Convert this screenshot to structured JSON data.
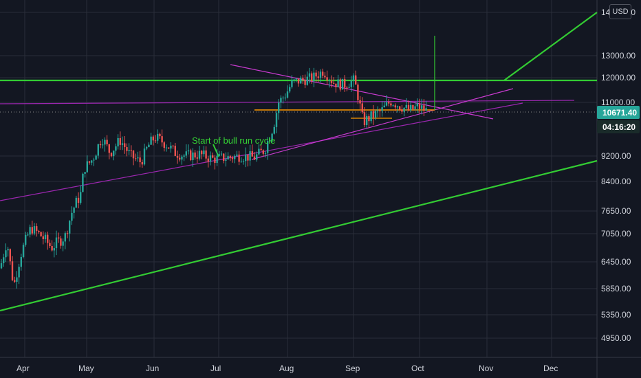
{
  "chart_data": {
    "type": "candlestick",
    "title": "",
    "currency_label": "USD",
    "y_ticks": [
      "14000.00",
      "13000.00",
      "12000.00",
      "11000.00",
      "9200.00",
      "8400.00",
      "7650.00",
      "7050.00",
      "6450.00",
      "5850.00",
      "5350.00",
      "4950.00"
    ],
    "x_ticks": [
      "Apr",
      "May",
      "Jun",
      "Jul",
      "Aug",
      "Sep",
      "Oct",
      "Nov",
      "Dec"
    ],
    "last_price": "10671.40",
    "countdown": "04:16:20",
    "annotation": "Start of bull run cycle",
    "ohlc_approx": [
      {
        "month": "Apr",
        "low": 5600,
        "high": 7400
      },
      {
        "month": "May",
        "low": 8200,
        "high": 9900
      },
      {
        "month": "Jun",
        "low": 8600,
        "high": 10200
      },
      {
        "month": "Jul",
        "low": 8900,
        "high": 9800
      },
      {
        "month": "Aug",
        "low": 10800,
        "high": 12450
      },
      {
        "month": "Sep",
        "low": 9900,
        "high": 11200
      },
      {
        "month": "Oct",
        "low": 10500,
        "high": 10900
      }
    ],
    "colors": {
      "up": "#26a69a",
      "down": "#ef5350",
      "bg": "#131722",
      "grid": "#2a2e39",
      "green_line": "#33cc33",
      "purple_line": "#9c27b0",
      "magenta_line": "#c93bd0",
      "orange_line": "#ff9800",
      "badge": "#26a69a"
    }
  }
}
